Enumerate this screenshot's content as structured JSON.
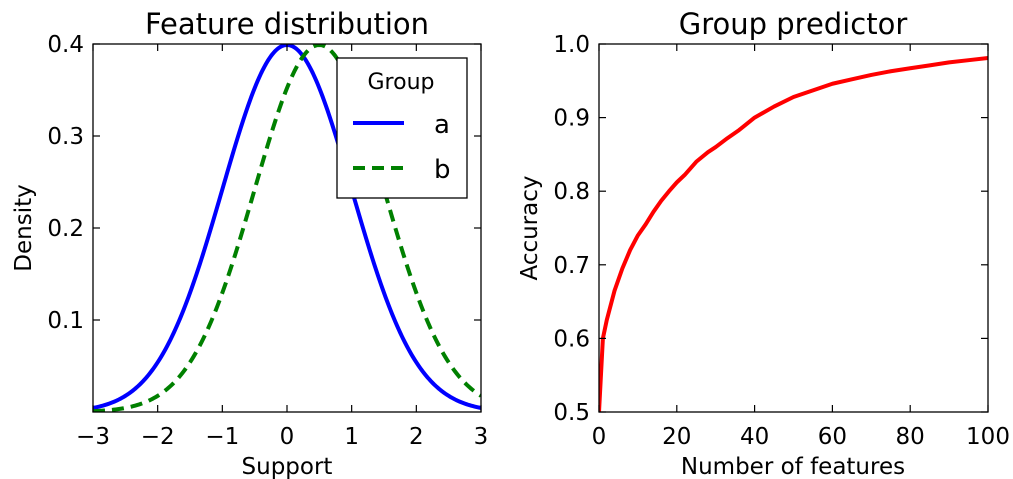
{
  "chart_data": [
    {
      "type": "line",
      "title": "Feature distribution",
      "xlabel": "Support",
      "ylabel": "Density",
      "xlim": [
        -3,
        3
      ],
      "ylim": [
        0,
        0.4
      ],
      "xticks": [
        -3,
        -2,
        -1,
        0,
        1,
        2,
        3
      ],
      "xtick_labels": [
        "−3",
        "−2",
        "−1",
        "0",
        "1",
        "2",
        "3"
      ],
      "yticks": [
        0.1,
        0.2,
        0.3,
        0.4
      ],
      "ytick_labels": [
        "0.1",
        "0.2",
        "0.3",
        "0.4"
      ],
      "grid": false,
      "legend": {
        "title": "Group",
        "placement": "top-right"
      },
      "series": [
        {
          "name": "a",
          "color": "#0000ff",
          "style": "solid",
          "distribution": "normal",
          "mean": 0.0,
          "sd": 1.0
        },
        {
          "name": "b",
          "color": "#008000",
          "style": "dashed",
          "distribution": "normal",
          "mean": 0.5,
          "sd": 1.0
        }
      ]
    },
    {
      "type": "line",
      "title": "Group predictor",
      "xlabel": "Number of features",
      "ylabel": "Accuracy",
      "xlim": [
        0,
        100
      ],
      "ylim": [
        0.5,
        1.0
      ],
      "xticks": [
        0,
        20,
        40,
        60,
        80,
        100
      ],
      "xtick_labels": [
        "0",
        "20",
        "40",
        "60",
        "80",
        "100"
      ],
      "yticks": [
        0.5,
        0.6,
        0.7,
        0.8,
        0.9,
        1.0
      ],
      "ytick_labels": [
        "0.5",
        "0.6",
        "0.7",
        "0.8",
        "0.9",
        "1.0"
      ],
      "grid": false,
      "series": [
        {
          "color": "#ff0000",
          "x": [
            0,
            1,
            2,
            4,
            6,
            8,
            10,
            12,
            14,
            16,
            18,
            20,
            22,
            25,
            28,
            30,
            33,
            36,
            40,
            45,
            50,
            55,
            60,
            65,
            70,
            75,
            80,
            85,
            90,
            95,
            100
          ],
          "y": [
            0.5,
            0.6,
            0.625,
            0.665,
            0.695,
            0.72,
            0.74,
            0.755,
            0.772,
            0.787,
            0.8,
            0.812,
            0.822,
            0.84,
            0.853,
            0.86,
            0.872,
            0.883,
            0.9,
            0.915,
            0.928,
            0.937,
            0.946,
            0.952,
            0.958,
            0.963,
            0.967,
            0.971,
            0.975,
            0.978,
            0.981
          ]
        }
      ]
    }
  ]
}
